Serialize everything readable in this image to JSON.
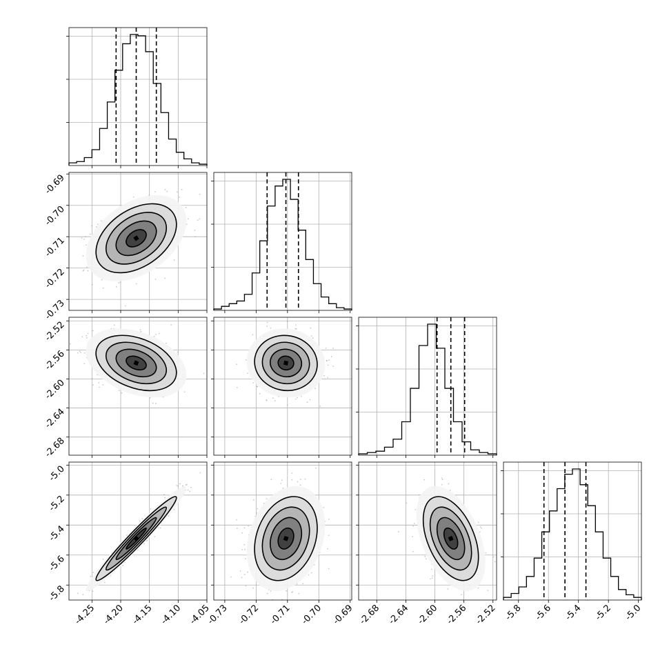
{
  "chart_data": {
    "type": "corner",
    "parameter_count": 4,
    "axis_limits": [
      [
        -4.29,
        -4.05
      ],
      [
        -0.7335,
        -0.6895
      ],
      [
        -2.705,
        -2.515
      ],
      [
        -5.9,
        -4.98
      ]
    ],
    "ticks": [
      [
        "-4.25",
        "-4.20",
        "-4.15",
        "-4.10",
        "-4.05"
      ],
      [
        "-0.73",
        "-0.72",
        "-0.71",
        "-0.70",
        "-0.69"
      ],
      [
        "-2.68",
        "-2.64",
        "-2.60",
        "-2.56",
        "-2.52"
      ],
      [
        "-5.8",
        "-5.6",
        "-5.4",
        "-5.2",
        "-5.0"
      ]
    ],
    "tick_values": [
      [
        -4.25,
        -4.2,
        -4.15,
        -4.1,
        -4.05
      ],
      [
        -0.73,
        -0.72,
        -0.71,
        -0.7,
        -0.69
      ],
      [
        -2.68,
        -2.64,
        -2.6,
        -2.56,
        -2.52
      ],
      [
        -5.8,
        -5.6,
        -5.4,
        -5.2,
        -5.0
      ]
    ],
    "grid": true,
    "histograms": [
      {
        "param": 0,
        "quantiles": [
          -4.208,
          -4.173,
          -4.138
        ],
        "counts": [
          2,
          3,
          6,
          12,
          28,
          48,
          72,
          92,
          99,
          98,
          86,
          62,
          40,
          20,
          10,
          5,
          2,
          1
        ]
      },
      {
        "param": 1,
        "quantiles": [
          -0.7165,
          -0.7105,
          -0.7065
        ],
        "counts": [
          1,
          3,
          5,
          7,
          12,
          28,
          52,
          78,
          93,
          98,
          83,
          60,
          38,
          20,
          10,
          5,
          2,
          1
        ]
      },
      {
        "param": 2,
        "quantiles": [
          -2.597,
          -2.578,
          -2.559
        ],
        "counts": [
          1,
          2,
          3,
          6,
          12,
          25,
          50,
          82,
          98,
          80,
          50,
          25,
          10,
          4,
          2,
          1
        ]
      },
      {
        "param": 3,
        "quantiles": [
          -5.63,
          -5.49,
          -5.35
        ],
        "counts": [
          2,
          5,
          10,
          18,
          32,
          52,
          68,
          85,
          96,
          100,
          88,
          72,
          52,
          32,
          18,
          8,
          4,
          2
        ]
      }
    ],
    "joints": [
      {
        "x_param": 0,
        "y_param": 1,
        "mean": [
          -4.173,
          -0.7105
        ],
        "sd": [
          0.035,
          0.0055
        ],
        "rho": 0.4
      },
      {
        "x_param": 0,
        "y_param": 2,
        "mean": [
          -4.173,
          -2.578
        ],
        "sd": [
          0.035,
          0.019
        ],
        "rho": -0.35
      },
      {
        "x_param": 1,
        "y_param": 2,
        "mean": [
          -0.7105,
          -2.578
        ],
        "sd": [
          0.005,
          0.019
        ],
        "rho": -0.05
      },
      {
        "x_param": 0,
        "y_param": 3,
        "mean": [
          -4.173,
          -5.49
        ],
        "sd": [
          0.035,
          0.14
        ],
        "rho": 0.97
      },
      {
        "x_param": 1,
        "y_param": 3,
        "mean": [
          -0.7105,
          -5.49
        ],
        "sd": [
          0.005,
          0.14
        ],
        "rho": 0.25
      },
      {
        "x_param": 2,
        "y_param": 3,
        "mean": [
          -2.578,
          -5.49
        ],
        "sd": [
          0.019,
          0.14
        ],
        "rho": -0.45
      }
    ],
    "colors": {
      "line": "#000000",
      "grid": "#b0b0b0",
      "points": "#9a9a9a",
      "frame": "#000000"
    }
  }
}
